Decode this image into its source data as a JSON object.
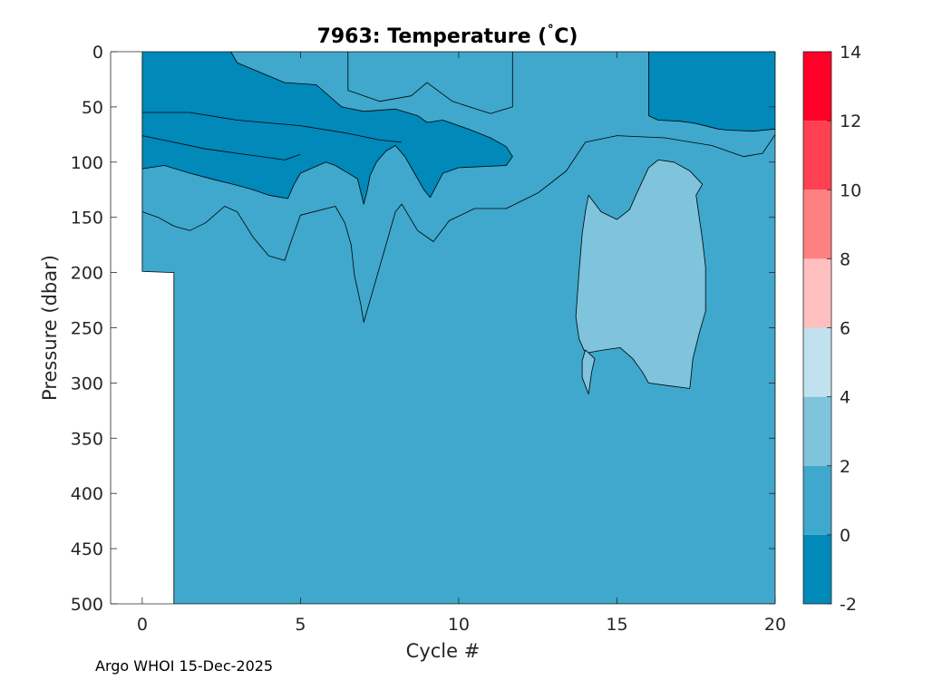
{
  "chart_data": {
    "type": "filled-contour",
    "title": "7963:  Temperature (˚C)",
    "title_parts": {
      "prefix": "7963:  Temperature (",
      "degree": "˚",
      "suffix": "C)"
    },
    "xlabel": "Cycle #",
    "ylabel": "Pressure (dbar)",
    "xlim": [
      -1,
      20
    ],
    "ylim": [
      500,
      0
    ],
    "x_ticks": [
      0,
      5,
      10,
      15,
      20
    ],
    "y_ticks": [
      0,
      50,
      100,
      150,
      200,
      250,
      300,
      350,
      400,
      450,
      500
    ],
    "colorbar": {
      "levels": [
        -2,
        0,
        2,
        4,
        6,
        8,
        10,
        12,
        14
      ],
      "tick_labels": [
        "-2",
        "0",
        "2",
        "4",
        "6",
        "8",
        "10",
        "12",
        "14"
      ],
      "colors": [
        "#0089b9",
        "#3fa8cc",
        "#7fc3dc",
        "#c0e1ed",
        "#ffbfbf",
        "#ff8080",
        "#ff4050",
        "#ff0027"
      ]
    },
    "regions": [
      {
        "name": "background-0-to-2C",
        "range": [
          0,
          2
        ],
        "points": [
          [
            0,
            0
          ],
          [
            20,
            0
          ],
          [
            20,
            500
          ],
          [
            1,
            500
          ],
          [
            1,
            200
          ],
          [
            0,
            199
          ]
        ]
      },
      {
        "name": "cold-upper-band",
        "range": [
          -2,
          0
        ],
        "points": [
          [
            0,
            0
          ],
          [
            2.8,
            0
          ],
          [
            3.0,
            10
          ],
          [
            4.5,
            28
          ],
          [
            5.5,
            30
          ],
          [
            6.3,
            50
          ],
          [
            7,
            54
          ],
          [
            8,
            52
          ],
          [
            8.7,
            58
          ],
          [
            9,
            64
          ],
          [
            9.5,
            62
          ],
          [
            10.3,
            70
          ],
          [
            11,
            78
          ],
          [
            11.5,
            86
          ],
          [
            11.7,
            95
          ],
          [
            11.5,
            103
          ],
          [
            10,
            105
          ],
          [
            9.5,
            110
          ],
          [
            9.1,
            132
          ],
          [
            8.9,
            125
          ],
          [
            8.6,
            110
          ],
          [
            8.3,
            95
          ],
          [
            8,
            85
          ],
          [
            7.7,
            90
          ],
          [
            7.4,
            100
          ],
          [
            7.2,
            112
          ],
          [
            7.1,
            127
          ],
          [
            7,
            138
          ],
          [
            6.8,
            115
          ],
          [
            6.1,
            103
          ],
          [
            5.8,
            100
          ],
          [
            5,
            110
          ],
          [
            4.8,
            120
          ],
          [
            4.6,
            133
          ],
          [
            4,
            130
          ],
          [
            3.5,
            125
          ],
          [
            3,
            121
          ],
          [
            2.3,
            116
          ],
          [
            1.5,
            110
          ],
          [
            0.7,
            103
          ],
          [
            0,
            106
          ]
        ]
      },
      {
        "name": "cold-upper-right",
        "range": [
          -2,
          0
        ],
        "points": [
          [
            16,
            0
          ],
          [
            20,
            0
          ],
          [
            20,
            70
          ],
          [
            19.3,
            72
          ],
          [
            18.5,
            71
          ],
          [
            18.2,
            70
          ],
          [
            17.5,
            65
          ],
          [
            17,
            63
          ],
          [
            16.3,
            62
          ],
          [
            16,
            58
          ]
        ]
      },
      {
        "name": "warm-mid-lobe",
        "range": [
          2,
          4
        ],
        "points": [
          [
            14.1,
            130
          ],
          [
            14.5,
            145
          ],
          [
            15,
            152
          ],
          [
            15.4,
            143
          ],
          [
            15.6,
            130
          ],
          [
            16,
            105
          ],
          [
            16.3,
            98
          ],
          [
            16.8,
            100
          ],
          [
            17.3,
            108
          ],
          [
            17.7,
            120
          ],
          [
            17.5,
            130
          ],
          [
            17.6,
            150
          ],
          [
            17.7,
            170
          ],
          [
            17.8,
            195
          ],
          [
            17.8,
            235
          ],
          [
            17.6,
            255
          ],
          [
            17.4,
            278
          ],
          [
            17.3,
            305
          ],
          [
            16.5,
            302
          ],
          [
            16,
            300
          ],
          [
            15.8,
            290
          ],
          [
            15.5,
            278
          ],
          [
            15.1,
            268
          ],
          [
            14.6,
            270
          ],
          [
            14,
            273
          ],
          [
            13.8,
            260
          ],
          [
            13.7,
            240
          ],
          [
            13.8,
            200
          ],
          [
            13.9,
            165
          ],
          [
            14,
            145
          ]
        ]
      },
      {
        "name": "warm-small-patch",
        "range": [
          2,
          4
        ],
        "points": [
          [
            14.0,
            270
          ],
          [
            14.3,
            278
          ],
          [
            14.2,
            290
          ],
          [
            14.1,
            310
          ],
          [
            13.9,
            295
          ],
          [
            13.9,
            280
          ]
        ]
      }
    ],
    "contour_lines": [
      {
        "name": "upper-left-boundary",
        "points": [
          [
            0,
            55
          ],
          [
            1.5,
            55
          ],
          [
            3,
            62
          ],
          [
            5,
            67
          ],
          [
            6.5,
            74
          ],
          [
            7.5,
            80
          ],
          [
            8.2,
            82
          ]
        ]
      },
      {
        "name": "mid-left-boundary",
        "points": [
          [
            0,
            76
          ],
          [
            1,
            82
          ],
          [
            2,
            88
          ],
          [
            3,
            92
          ],
          [
            4,
            96
          ],
          [
            4.5,
            98
          ],
          [
            5,
            93
          ]
        ]
      },
      {
        "name": "deep-boundary",
        "points": [
          [
            0,
            145
          ],
          [
            0.5,
            150
          ],
          [
            1,
            158
          ],
          [
            1.5,
            162
          ],
          [
            2,
            155
          ],
          [
            2.6,
            140
          ],
          [
            3,
            145
          ],
          [
            3.5,
            168
          ],
          [
            4,
            185
          ],
          [
            4.5,
            189
          ],
          [
            4.7,
            172
          ],
          [
            5,
            148
          ],
          [
            6.1,
            140
          ],
          [
            6.4,
            155
          ],
          [
            6.6,
            175
          ],
          [
            6.7,
            202
          ],
          [
            6.9,
            228
          ],
          [
            7,
            245
          ],
          [
            7.3,
            215
          ],
          [
            7.7,
            175
          ],
          [
            8,
            145
          ],
          [
            8.2,
            138
          ],
          [
            8.7,
            162
          ],
          [
            9.2,
            172
          ],
          [
            9.7,
            153
          ],
          [
            10.5,
            142
          ],
          [
            11.5,
            142
          ],
          [
            12.5,
            128
          ],
          [
            13.4,
            108
          ],
          [
            14,
            82
          ],
          [
            15,
            76
          ],
          [
            16.5,
            78
          ],
          [
            18,
            85
          ],
          [
            19,
            95
          ],
          [
            19.6,
            92
          ],
          [
            20,
            75
          ]
        ]
      },
      {
        "name": "upper-right-boundary",
        "points": [
          [
            6.5,
            0
          ],
          [
            6.5,
            35
          ],
          [
            7.5,
            45
          ],
          [
            8.5,
            40
          ],
          [
            9,
            28
          ],
          [
            9.8,
            45
          ],
          [
            11,
            56
          ],
          [
            11.7,
            50
          ],
          [
            11.7,
            0
          ]
        ]
      }
    ]
  },
  "footer": "Argo WHOI 15-Dec-2025"
}
